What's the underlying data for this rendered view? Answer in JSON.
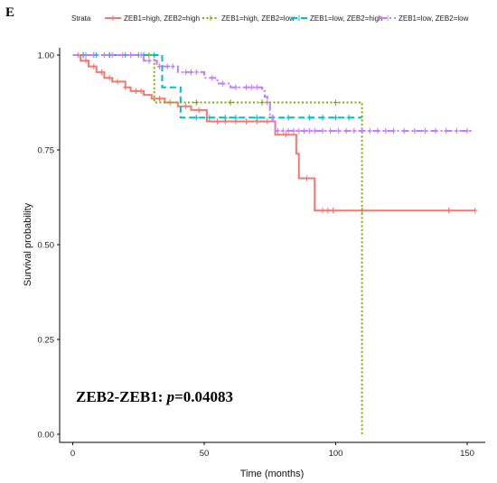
{
  "panel_label": "E",
  "chart_data": {
    "type": "line",
    "subtype": "kaplan-meier",
    "xlabel": "Time (months)",
    "ylabel": "Survival probability",
    "xlim": [
      0,
      155
    ],
    "ylim": [
      0,
      1.02
    ],
    "x_ticks": [
      0,
      50,
      100,
      150
    ],
    "y_ticks": [
      0.0,
      0.25,
      0.5,
      0.75,
      1.0
    ],
    "y_tick_labels": [
      "0.00",
      "0.25",
      "0.50",
      "0.75",
      "1.00"
    ],
    "legend_title": "Strata",
    "legend_position": "top",
    "grid": false,
    "annotation": {
      "prefix": "ZEB2-ZEB1: ",
      "p_symbol": "p",
      "value": "=0.04083"
    },
    "series": [
      {
        "name": "ZEB1=high, ZEB2=high",
        "color": "#F8766D",
        "linestyle": "solid",
        "steps": [
          [
            0,
            1.0
          ],
          [
            3,
            0.985
          ],
          [
            6,
            0.97
          ],
          [
            9,
            0.955
          ],
          [
            12,
            0.94
          ],
          [
            15,
            0.93
          ],
          [
            20,
            0.915
          ],
          [
            22,
            0.905
          ],
          [
            27,
            0.895
          ],
          [
            30,
            0.885
          ],
          [
            35,
            0.875
          ],
          [
            40,
            0.865
          ],
          [
            45,
            0.855
          ],
          [
            51,
            0.825
          ],
          [
            75,
            0.825
          ],
          [
            77,
            0.79
          ],
          [
            84,
            0.79
          ],
          [
            85,
            0.74
          ],
          [
            86,
            0.675
          ],
          [
            92,
            0.59
          ],
          [
            153,
            0.59
          ]
        ],
        "censor": [
          2,
          5,
          8,
          11,
          14,
          17,
          20,
          24,
          26,
          33,
          37,
          43,
          48,
          55,
          58,
          62,
          66,
          70,
          74,
          81,
          89,
          95,
          97,
          99,
          110,
          143,
          153
        ]
      },
      {
        "name": "ZEB1=high, ZEB2=low",
        "color": "#7CAE00",
        "linestyle": "dotted",
        "steps": [
          [
            0,
            1.0
          ],
          [
            30,
            1.0
          ],
          [
            31,
            0.875
          ],
          [
            110,
            0.875
          ],
          [
            110,
            0.0
          ]
        ],
        "censor": [
          4,
          8,
          14,
          20,
          25,
          29,
          47,
          60,
          72,
          100
        ]
      },
      {
        "name": "ZEB1=low, ZEB2=high",
        "color": "#00BFC4",
        "linestyle": "dashed",
        "steps": [
          [
            0,
            1.0
          ],
          [
            34,
            1.0
          ],
          [
            34,
            0.915
          ],
          [
            41,
            0.915
          ],
          [
            41,
            0.835
          ],
          [
            110,
            0.835
          ]
        ],
        "censor": [
          4,
          9,
          14,
          22,
          27,
          31,
          47,
          52,
          58,
          62,
          70,
          76,
          82,
          90,
          95,
          100,
          105
        ]
      },
      {
        "name": "ZEB1=low, ZEB2=low",
        "color": "#C77CFF",
        "linestyle": "dashdot",
        "steps": [
          [
            0,
            1.0
          ],
          [
            24,
            1.0
          ],
          [
            27,
            0.985
          ],
          [
            32,
            0.97
          ],
          [
            40,
            0.955
          ],
          [
            50,
            0.94
          ],
          [
            55,
            0.925
          ],
          [
            60,
            0.915
          ],
          [
            72,
            0.905
          ],
          [
            73,
            0.89
          ],
          [
            74,
            0.875
          ],
          [
            75,
            0.84
          ],
          [
            76,
            0.825
          ],
          [
            77,
            0.8
          ],
          [
            152,
            0.8
          ]
        ],
        "censor": [
          5,
          8,
          12,
          15,
          19,
          22,
          26,
          29,
          33,
          36,
          38,
          43,
          45,
          47,
          53,
          57,
          62,
          66,
          68,
          70,
          74,
          78,
          80,
          82,
          84,
          86,
          88,
          90,
          92,
          95,
          98,
          101,
          104,
          107,
          110,
          113,
          116,
          119,
          122,
          126,
          130,
          134,
          138,
          142,
          146,
          150
        ]
      }
    ]
  }
}
